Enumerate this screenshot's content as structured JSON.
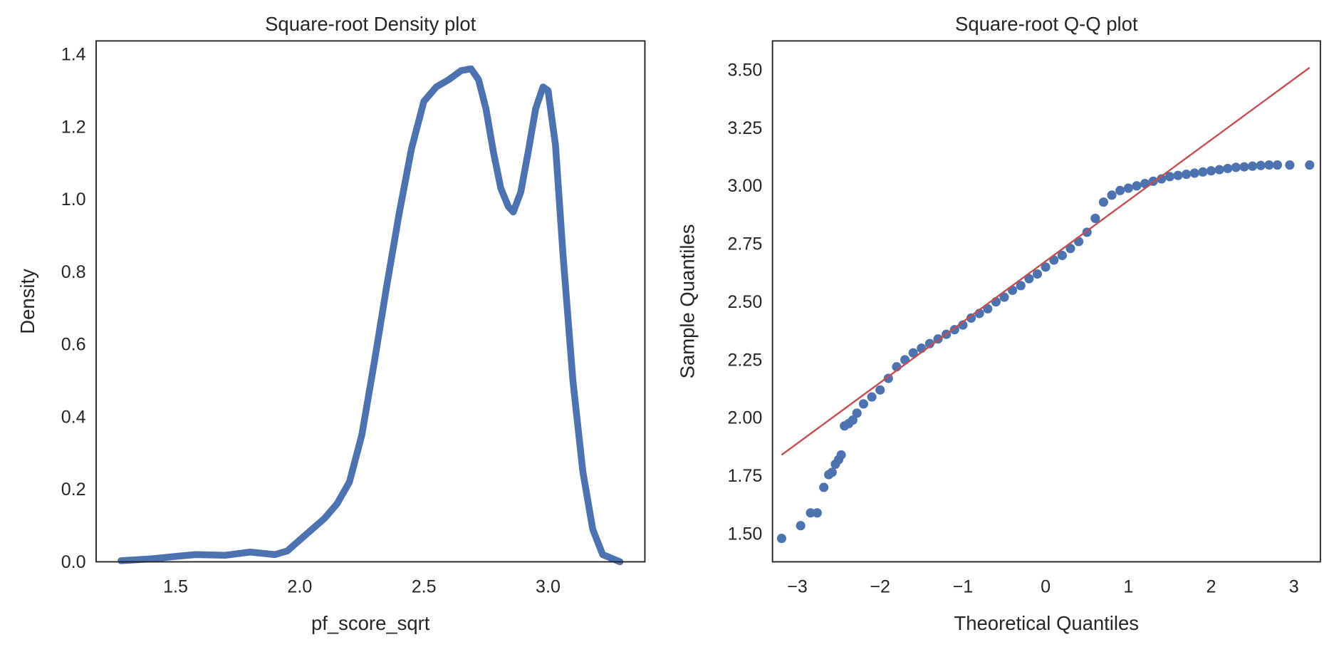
{
  "chart_data": [
    {
      "type": "line",
      "title": "Square-root Density plot",
      "xlabel": "pf_score_sqrt",
      "ylabel": "Density",
      "xlim": [
        1.18,
        3.39
      ],
      "ylim": [
        0,
        1.437
      ],
      "xticks": [
        "1.5",
        "2.0",
        "2.5",
        "3.0"
      ],
      "xtick_values": [
        1.5,
        2.0,
        2.5,
        3.0
      ],
      "yticks": [
        "0.0",
        "0.2",
        "0.4",
        "0.6",
        "0.8",
        "1.0",
        "1.2",
        "1.4"
      ],
      "ytick_values": [
        0,
        0.2,
        0.4,
        0.6,
        0.8,
        1.0,
        1.2,
        1.4
      ],
      "grid": false,
      "color": "#4c72b0",
      "x": [
        1.28,
        1.4,
        1.5,
        1.58,
        1.7,
        1.8,
        1.9,
        1.95,
        2.0,
        2.1,
        2.15,
        2.2,
        2.25,
        2.3,
        2.35,
        2.4,
        2.45,
        2.5,
        2.55,
        2.6,
        2.65,
        2.69,
        2.72,
        2.75,
        2.78,
        2.81,
        2.84,
        2.86,
        2.89,
        2.92,
        2.95,
        2.98,
        3.0,
        3.03,
        3.06,
        3.1,
        3.14,
        3.18,
        3.22,
        3.29
      ],
      "y": [
        0.003,
        0.008,
        0.015,
        0.02,
        0.018,
        0.027,
        0.02,
        0.03,
        0.06,
        0.12,
        0.16,
        0.22,
        0.35,
        0.55,
        0.76,
        0.96,
        1.14,
        1.27,
        1.31,
        1.33,
        1.355,
        1.36,
        1.33,
        1.25,
        1.13,
        1.03,
        0.98,
        0.965,
        1.02,
        1.13,
        1.25,
        1.31,
        1.3,
        1.15,
        0.85,
        0.5,
        0.25,
        0.09,
        0.02,
        0.0
      ]
    },
    {
      "type": "scatter",
      "title": "Square-root Q-Q plot",
      "xlabel": "Theoretical Quantiles",
      "ylabel": "Sample Quantiles",
      "xlim": [
        -3.3,
        3.32
      ],
      "ylim": [
        1.379,
        3.625
      ],
      "xticks": [
        "−3",
        "−2",
        "−1",
        "0",
        "1",
        "2",
        "3"
      ],
      "xtick_values": [
        -3,
        -2,
        -1,
        0,
        1,
        2,
        3
      ],
      "yticks": [
        "1.50",
        "1.75",
        "2.00",
        "2.25",
        "2.50",
        "2.75",
        "3.00",
        "3.25",
        "3.50"
      ],
      "ytick_values": [
        1.5,
        1.75,
        2.0,
        2.25,
        2.5,
        2.75,
        3.0,
        3.25,
        3.5
      ],
      "grid": false,
      "point_color": "#4c72b0",
      "line_color": "#c44e52",
      "reference_line": {
        "x": [
          -3.19,
          3.19
        ],
        "y": [
          1.84,
          3.51
        ]
      },
      "x": [
        -3.19,
        -2.96,
        -2.84,
        -2.76,
        -2.68,
        -2.62,
        -2.58,
        -2.54,
        -2.5,
        -2.47,
        -2.43,
        -2.38,
        -2.33,
        -2.28,
        -2.2,
        -2.1,
        -2.0,
        -1.9,
        -1.8,
        -1.7,
        -1.6,
        -1.5,
        -1.4,
        -1.3,
        -1.2,
        -1.1,
        -1.0,
        -0.9,
        -0.8,
        -0.7,
        -0.6,
        -0.5,
        -0.4,
        -0.3,
        -0.2,
        -0.1,
        0,
        0.1,
        0.2,
        0.3,
        0.4,
        0.5,
        0.6,
        0.7,
        0.8,
        0.9,
        1.0,
        1.1,
        1.2,
        1.3,
        1.4,
        1.5,
        1.6,
        1.7,
        1.8,
        1.9,
        2.0,
        2.1,
        2.2,
        2.3,
        2.4,
        2.5,
        2.6,
        2.7,
        2.8,
        2.95,
        3.19
      ],
      "y": [
        1.48,
        1.535,
        1.59,
        1.59,
        1.7,
        1.755,
        1.765,
        1.8,
        1.82,
        1.84,
        1.965,
        1.975,
        1.99,
        2.02,
        2.06,
        2.09,
        2.12,
        2.17,
        2.22,
        2.25,
        2.28,
        2.3,
        2.32,
        2.34,
        2.36,
        2.38,
        2.4,
        2.43,
        2.45,
        2.47,
        2.5,
        2.52,
        2.55,
        2.57,
        2.6,
        2.62,
        2.65,
        2.68,
        2.7,
        2.73,
        2.76,
        2.8,
        2.86,
        2.93,
        2.96,
        2.98,
        2.99,
        3.0,
        3.01,
        3.02,
        3.03,
        3.04,
        3.045,
        3.05,
        3.055,
        3.06,
        3.065,
        3.07,
        3.075,
        3.08,
        3.082,
        3.085,
        3.088,
        3.09,
        3.09,
        3.09,
        3.09
      ]
    }
  ]
}
